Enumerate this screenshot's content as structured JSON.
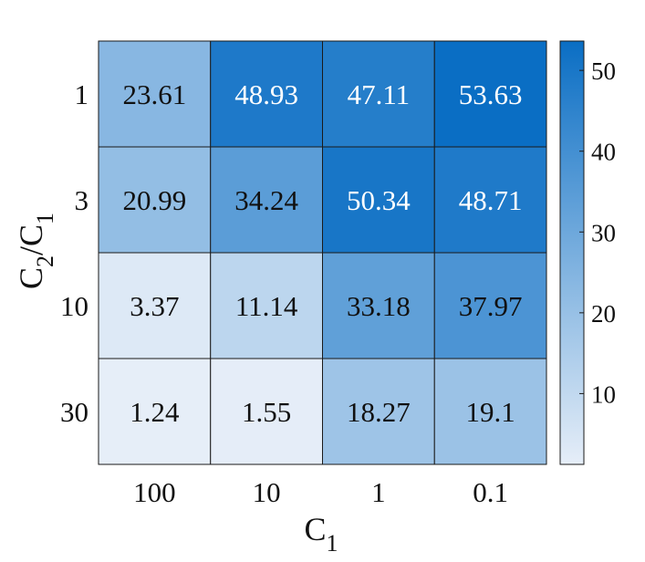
{
  "chart_data": {
    "type": "heatmap",
    "title": "",
    "xlabel": {
      "base": "C",
      "sub": "1"
    },
    "ylabel": {
      "num_base": "C",
      "num_sub": "2",
      "sep": "/",
      "den_base": "C",
      "den_sub": "1"
    },
    "x_categories": [
      "100",
      "10",
      "1",
      "0.1"
    ],
    "y_categories": [
      "1",
      "3",
      "10",
      "30"
    ],
    "values": [
      [
        23.61,
        48.93,
        47.11,
        53.63
      ],
      [
        20.99,
        34.24,
        50.34,
        48.71
      ],
      [
        3.37,
        11.14,
        33.18,
        37.97
      ],
      [
        1.24,
        1.55,
        18.27,
        19.1
      ]
    ],
    "cell_labels": [
      [
        "23.61",
        "48.93",
        "47.11",
        "53.63"
      ],
      [
        "20.99",
        "34.24",
        "50.34",
        "48.71"
      ],
      [
        "3.37",
        "11.14",
        "33.18",
        "37.97"
      ],
      [
        "1.24",
        "1.55",
        "18.27",
        "19.1"
      ]
    ],
    "colorbar": {
      "min": 1.24,
      "max": 53.63,
      "ticks": [
        "10",
        "20",
        "30",
        "40",
        "50"
      ],
      "colormap": [
        "#e6eef8",
        "#0a6ec4"
      ]
    },
    "grid": true,
    "legend": "colorbar-right"
  }
}
